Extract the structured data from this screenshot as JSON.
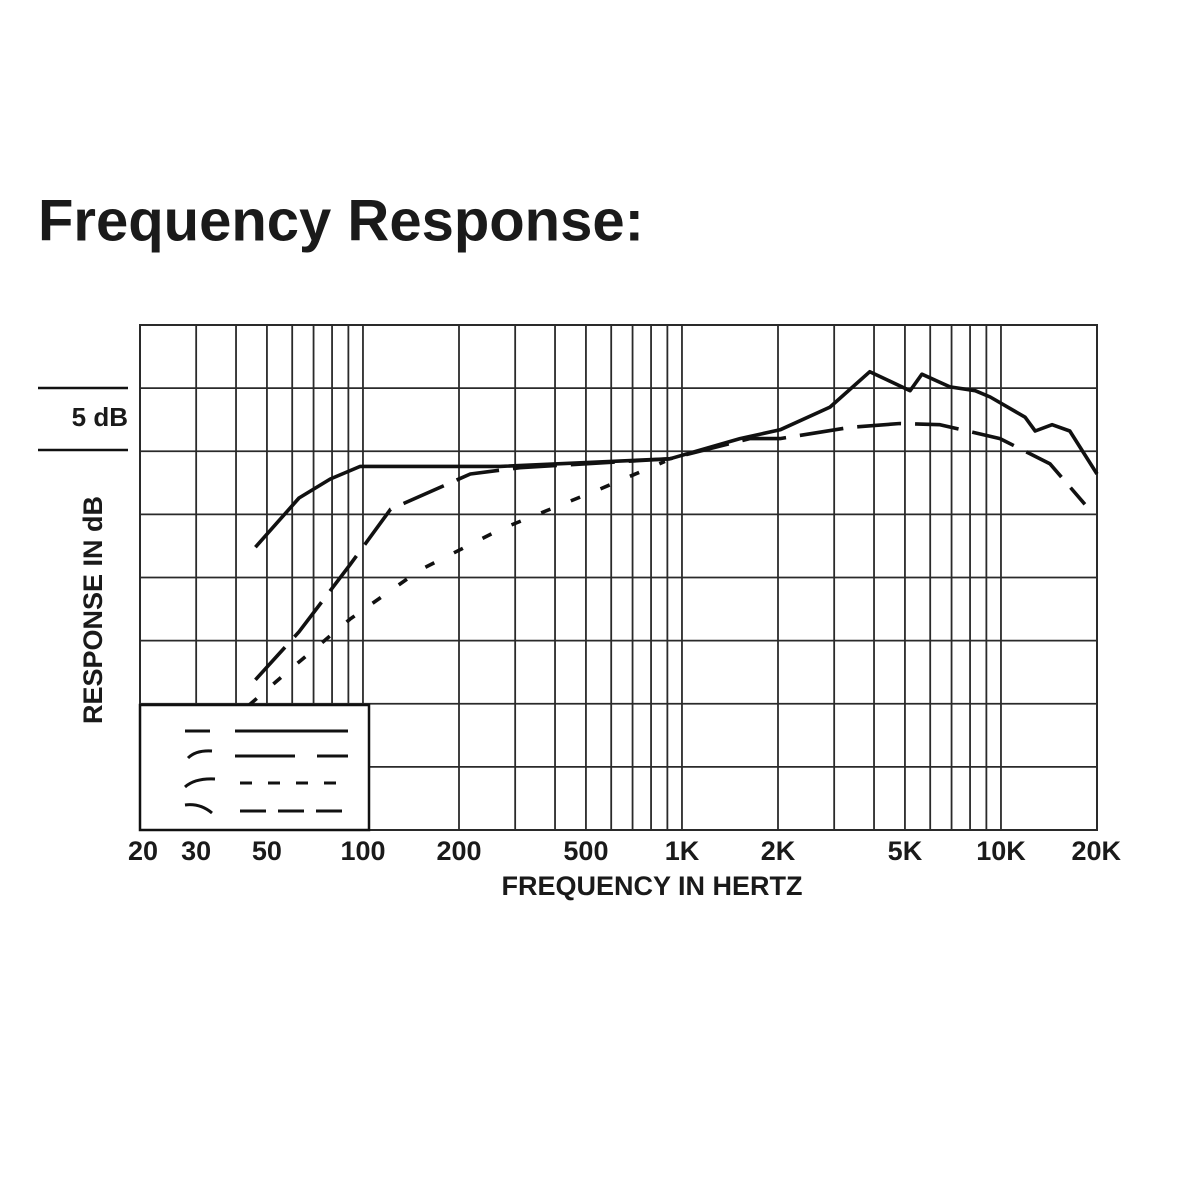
{
  "chart_data": {
    "type": "line",
    "title": "Frequency Response:",
    "xlabel": "FREQUENCY IN HERTZ",
    "ylabel": "RESPONSE IN dB",
    "scale_label": "5 dB",
    "xscale": "log",
    "xlim": [
      20,
      20000
    ],
    "ylim": [
      -30,
      10
    ],
    "xticks": [
      20,
      30,
      50,
      100,
      200,
      500,
      {
        "value": 1000,
        "label": "1K"
      },
      {
        "value": 2000,
        "label": "2K"
      },
      {
        "value": 5000,
        "label": "5K"
      },
      {
        "value": 10000,
        "label": "10K"
      },
      {
        "value": 20000,
        "label": "20K"
      }
    ],
    "xgrid": [
      20,
      30,
      40,
      50,
      60,
      70,
      80,
      90,
      100,
      200,
      300,
      400,
      500,
      600,
      700,
      800,
      900,
      1000,
      2000,
      3000,
      4000,
      5000,
      6000,
      7000,
      8000,
      9000,
      10000,
      20000
    ],
    "yticks": [
      -30,
      -25,
      -20,
      -15,
      -10,
      -5,
      0,
      5,
      10
    ],
    "grid": true,
    "series": [
      {
        "color": "#111111",
        "style": "solid",
        "x": [
          46,
          63,
          79,
          98,
          269,
          916,
          1520,
          2030,
          2910,
          3880,
          5190,
          5650,
          6920,
          8300,
          9250,
          11900,
          12800,
          14460,
          16440,
          20000
        ],
        "values": [
          -7.6,
          -3.7,
          -2.2,
          -1.2,
          -1.2,
          -0.6,
          1.0,
          1.7,
          3.5,
          6.3,
          4.8,
          6.1,
          5.1,
          4.8,
          4.3,
          2.7,
          1.6,
          2.1,
          1.6,
          -1.8
        ]
      },
      {
        "color": "#111111",
        "style": "dashed",
        "x": [
          46,
          63,
          91,
          122,
          217,
          310,
          916,
          1630,
          2030,
          3370,
          4820,
          6440,
          9930,
          14260,
          18330
        ],
        "values": [
          -18.1,
          -14.3,
          -9.0,
          -4.6,
          -1.8,
          -1.3,
          -0.6,
          1.0,
          1.0,
          1.9,
          2.2,
          2.1,
          1.0,
          -1.0,
          -4.2
        ]
      },
      {
        "color": "#111111",
        "style": "dotted",
        "x": [
          44,
          59,
          91,
          151,
          269,
          553,
          885
        ],
        "values": [
          -20.1,
          -17.3,
          -13.3,
          -9.4,
          -6.2,
          -3.0,
          -0.8
        ]
      }
    ]
  }
}
